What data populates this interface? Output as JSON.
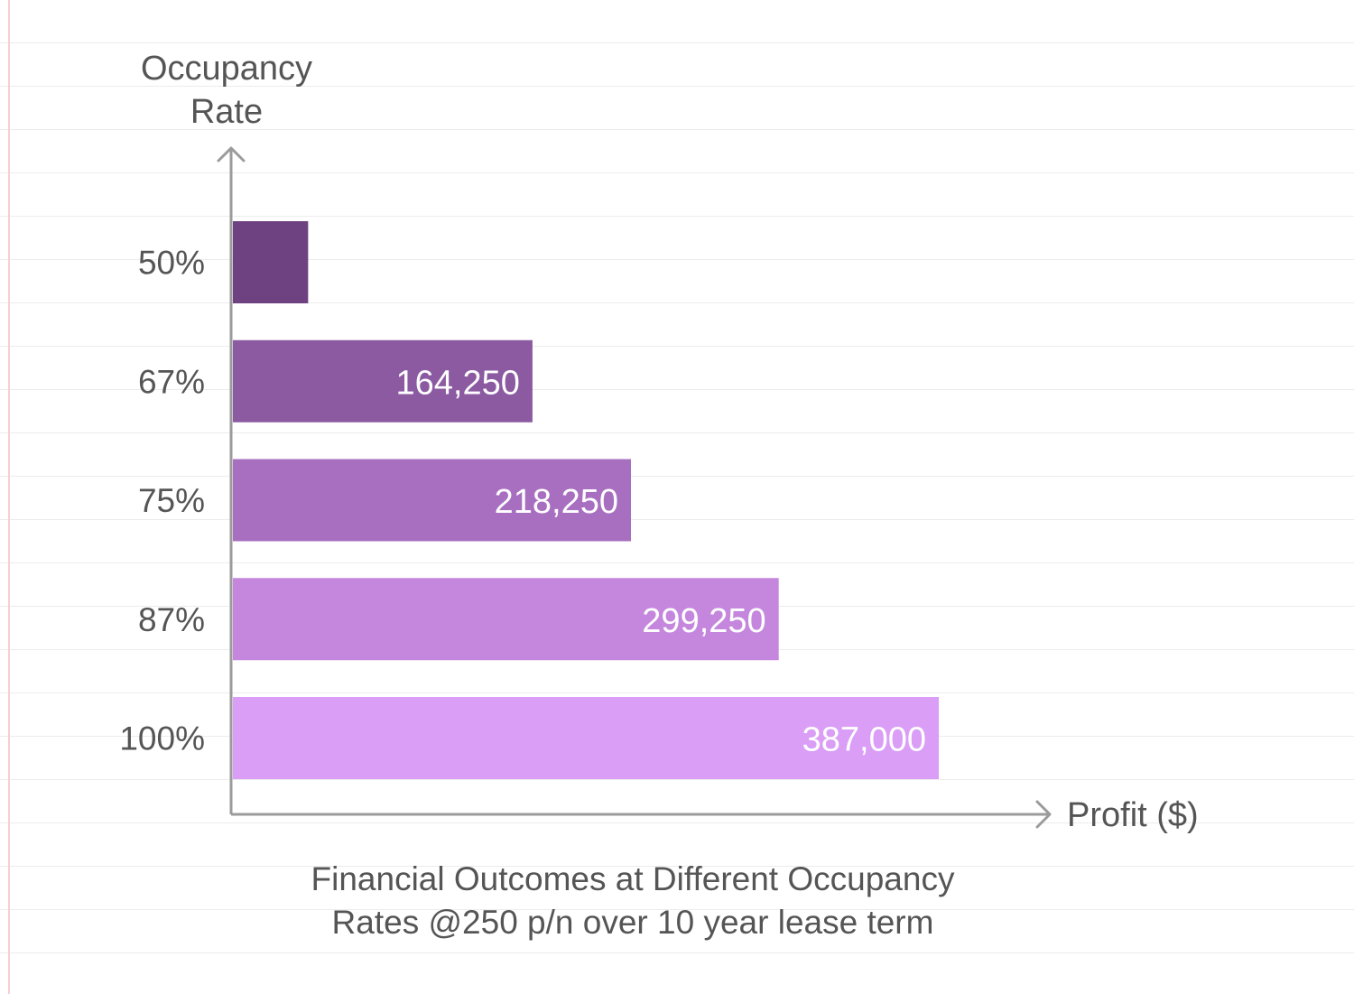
{
  "chart_data": {
    "type": "bar",
    "orientation": "horizontal",
    "categories": [
      "50%",
      "67%",
      "75%",
      "87%",
      "100%"
    ],
    "values": [
      41250,
      164250,
      218250,
      299250,
      387000
    ],
    "data_labels": [
      "",
      "164,250",
      "218,250",
      "299,250",
      "387,000"
    ],
    "colors": [
      "#6e4180",
      "#8b5aa1",
      "#a86fc0",
      "#c487dd",
      "#da9ef6"
    ],
    "ylabel_lines": [
      "Occupancy",
      "Rate"
    ],
    "xlabel": "Profit ($)",
    "caption_lines": [
      "Financial Outcomes at Different Occupancy",
      "Rates @250 p/n over 10 year lease term"
    ],
    "xlim": [
      0,
      387000
    ],
    "grid": false,
    "legend": "none",
    "axis_color": "#9b9b9b",
    "label_color": "#555555",
    "data_label_color": "#ffffff"
  }
}
